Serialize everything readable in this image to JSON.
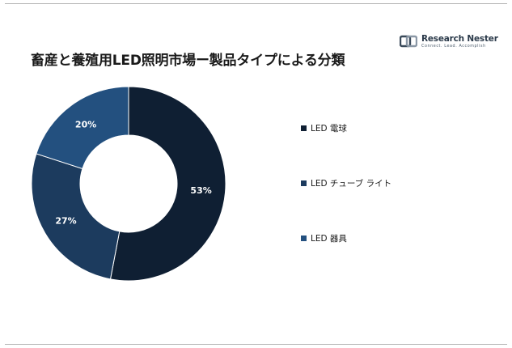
{
  "header": {
    "title": "畜産と養殖用LED照明市場ー製品タイプによる分類",
    "logo_name": "Research Nester",
    "logo_tagline": "Connect. Lead. Accomplish"
  },
  "chart_data": {
    "type": "pie",
    "donut": true,
    "title": "畜産と養殖用LED照明市場ー製品タイプによる分類",
    "categories": [
      "LED 電球",
      "LED チューブ ライト",
      "LED 器具"
    ],
    "values": [
      53,
      27,
      20
    ],
    "labels": [
      "53%",
      "27%",
      "20%"
    ],
    "colors": [
      "#0f1f33",
      "#1c3b5e",
      "#23507f"
    ],
    "legend_position": "right"
  }
}
